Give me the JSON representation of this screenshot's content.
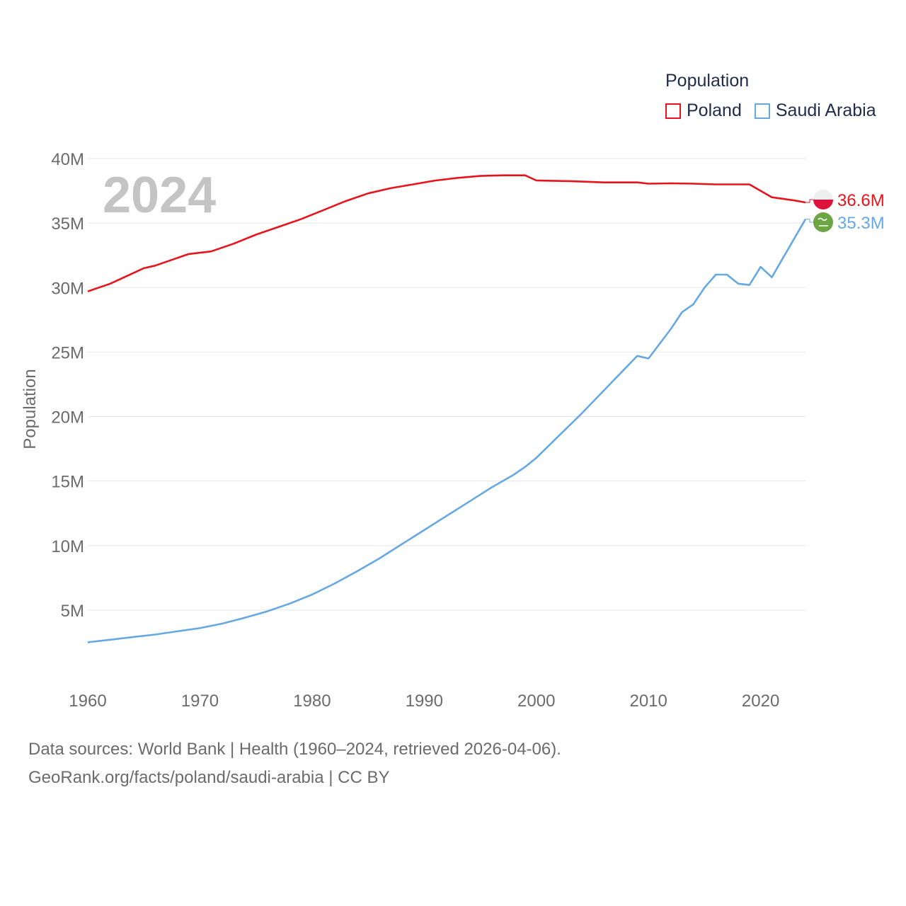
{
  "legend": {
    "title": "Population",
    "items": [
      {
        "label": "Poland",
        "color": "#e8141c"
      },
      {
        "label": "Saudi Arabia",
        "color": "#66a8e2"
      }
    ]
  },
  "chart_data": {
    "type": "line",
    "ylabel": "Population",
    "year_label": "2024",
    "ylim": [
      0,
      40000000
    ],
    "xlim": [
      1960,
      2024
    ],
    "y_ticks": [
      {
        "value": 5000000,
        "label": "5M"
      },
      {
        "value": 10000000,
        "label": "10M"
      },
      {
        "value": 15000000,
        "label": "15M"
      },
      {
        "value": 20000000,
        "label": "20M"
      },
      {
        "value": 25000000,
        "label": "25M"
      },
      {
        "value": 30000000,
        "label": "30M"
      },
      {
        "value": 35000000,
        "label": "35M"
      },
      {
        "value": 40000000,
        "label": "40M"
      }
    ],
    "x_ticks": [
      {
        "value": 1960,
        "label": "1960"
      },
      {
        "value": 1970,
        "label": "1970"
      },
      {
        "value": 1980,
        "label": "1980"
      },
      {
        "value": 1990,
        "label": "1990"
      },
      {
        "value": 2000,
        "label": "2000"
      },
      {
        "value": 2010,
        "label": "2010"
      },
      {
        "value": 2020,
        "label": "2020"
      }
    ],
    "series": [
      {
        "name": "Poland",
        "color": "#e8141c",
        "end_label": "36.6M",
        "points": [
          [
            1960,
            29700000
          ],
          [
            1962,
            30300000
          ],
          [
            1964,
            31100000
          ],
          [
            1965,
            31500000
          ],
          [
            1966,
            31700000
          ],
          [
            1968,
            32300000
          ],
          [
            1969,
            32600000
          ],
          [
            1971,
            32800000
          ],
          [
            1973,
            33400000
          ],
          [
            1975,
            34100000
          ],
          [
            1977,
            34700000
          ],
          [
            1979,
            35300000
          ],
          [
            1981,
            36000000
          ],
          [
            1983,
            36700000
          ],
          [
            1985,
            37300000
          ],
          [
            1987,
            37700000
          ],
          [
            1989,
            38000000
          ],
          [
            1991,
            38300000
          ],
          [
            1993,
            38500000
          ],
          [
            1995,
            38650000
          ],
          [
            1997,
            38700000
          ],
          [
            1999,
            38700000
          ],
          [
            2000,
            38300000
          ],
          [
            2003,
            38250000
          ],
          [
            2006,
            38150000
          ],
          [
            2009,
            38150000
          ],
          [
            2010,
            38050000
          ],
          [
            2012,
            38080000
          ],
          [
            2014,
            38050000
          ],
          [
            2016,
            38000000
          ],
          [
            2019,
            38000000
          ],
          [
            2020,
            37500000
          ],
          [
            2021,
            37000000
          ],
          [
            2023,
            36750000
          ],
          [
            2024,
            36600000
          ]
        ]
      },
      {
        "name": "Saudi Arabia",
        "color": "#66a8e2",
        "end_label": "35.3M",
        "points": [
          [
            1960,
            2500000
          ],
          [
            1962,
            2700000
          ],
          [
            1964,
            2900000
          ],
          [
            1966,
            3100000
          ],
          [
            1968,
            3350000
          ],
          [
            1970,
            3600000
          ],
          [
            1972,
            3950000
          ],
          [
            1974,
            4400000
          ],
          [
            1976,
            4900000
          ],
          [
            1978,
            5500000
          ],
          [
            1980,
            6200000
          ],
          [
            1982,
            7050000
          ],
          [
            1984,
            8000000
          ],
          [
            1986,
            9000000
          ],
          [
            1988,
            10100000
          ],
          [
            1990,
            11200000
          ],
          [
            1992,
            12300000
          ],
          [
            1994,
            13400000
          ],
          [
            1996,
            14500000
          ],
          [
            1998,
            15500000
          ],
          [
            1999,
            16100000
          ],
          [
            2000,
            16800000
          ],
          [
            2002,
            18500000
          ],
          [
            2004,
            20200000
          ],
          [
            2006,
            22000000
          ],
          [
            2008,
            23800000
          ],
          [
            2009,
            24700000
          ],
          [
            2010,
            24500000
          ],
          [
            2012,
            26800000
          ],
          [
            2013,
            28100000
          ],
          [
            2014,
            28700000
          ],
          [
            2015,
            30000000
          ],
          [
            2016,
            31000000
          ],
          [
            2017,
            31000000
          ],
          [
            2018,
            30300000
          ],
          [
            2019,
            30200000
          ],
          [
            2020,
            31600000
          ],
          [
            2021,
            30800000
          ],
          [
            2022,
            32300000
          ],
          [
            2024,
            35300000
          ]
        ]
      }
    ]
  },
  "footer": {
    "sources": "Data sources: World Bank | Health (1960–2024, retrieved 2026-04-06).",
    "credit": "GeoRank.org/facts/poland/saudi-arabia | CC BY"
  }
}
